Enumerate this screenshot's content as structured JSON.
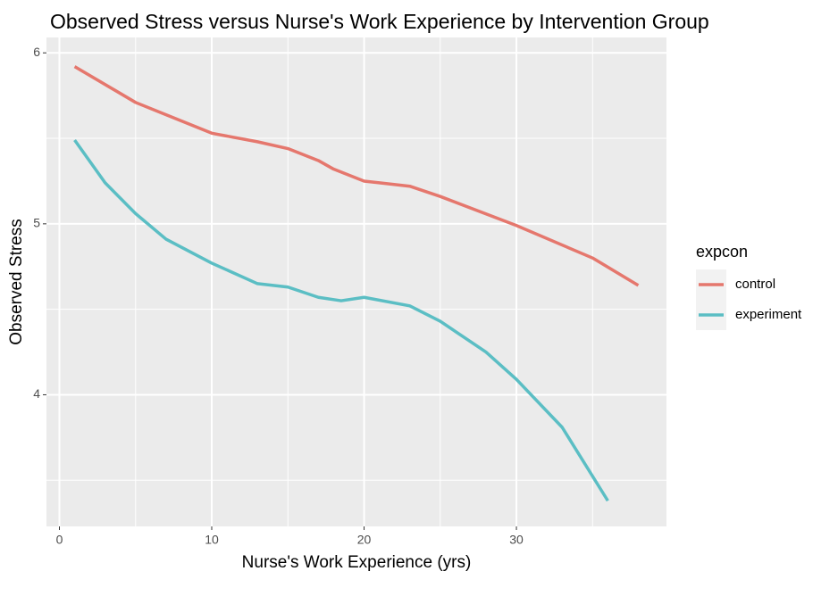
{
  "chart_data": {
    "type": "line",
    "title": "Observed Stress versus Nurse's Work Experience by Intervention Group",
    "x_label": "Nurse's Work Experience (yrs)",
    "y_label": "Observed Stress",
    "legend_title": "expcon",
    "legend_position": "right",
    "grid": true,
    "xlim": [
      -0.85,
      39.85
    ],
    "xticks": [
      0,
      10,
      20,
      30
    ],
    "xminor": [
      5,
      15,
      25,
      35
    ],
    "ylim": [
      3.23,
      6.09
    ],
    "yticks": [
      4,
      5,
      6
    ],
    "yminor": [
      3.5,
      4.5,
      5.5
    ],
    "series": [
      {
        "name": "control",
        "color": "#e5776d",
        "x": [
          1,
          5,
          10,
          13,
          15,
          17,
          18,
          20,
          21,
          23,
          25,
          30,
          35,
          38
        ],
        "values": [
          5.92,
          5.71,
          5.53,
          5.48,
          5.44,
          5.37,
          5.32,
          5.25,
          5.24,
          5.22,
          5.16,
          4.99,
          4.8,
          4.64
        ]
      },
      {
        "name": "experiment",
        "color": "#5bbec4",
        "x": [
          1,
          3,
          5,
          7,
          10,
          13,
          15,
          17,
          18.5,
          20,
          23,
          25,
          28,
          30,
          33,
          36
        ],
        "values": [
          5.49,
          5.24,
          5.06,
          4.91,
          4.77,
          4.65,
          4.63,
          4.57,
          4.55,
          4.57,
          4.52,
          4.43,
          4.25,
          4.09,
          3.81,
          3.38
        ]
      }
    ]
  }
}
